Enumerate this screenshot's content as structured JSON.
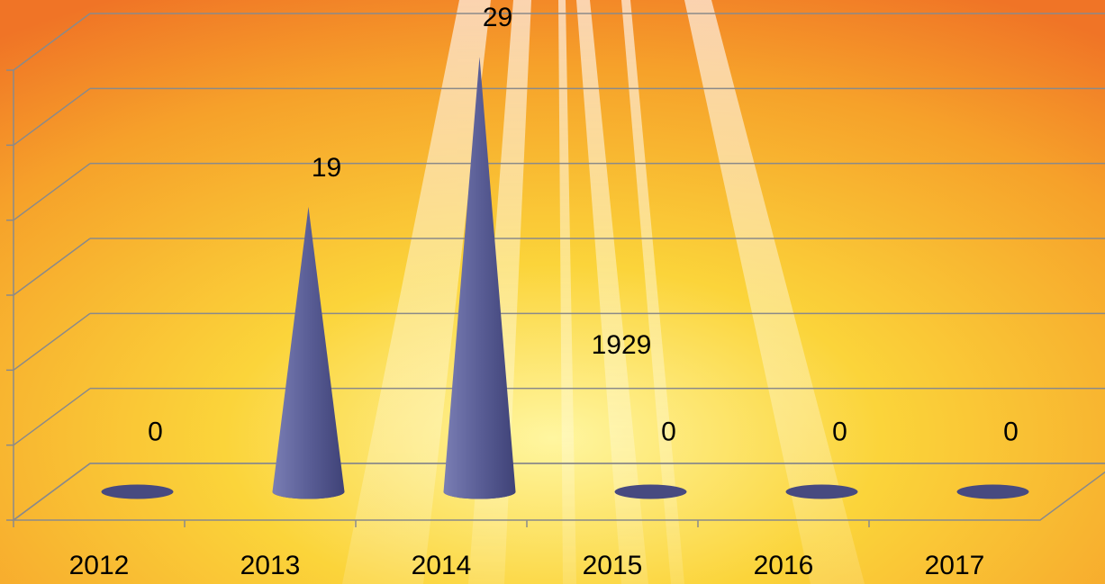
{
  "chart_data": {
    "type": "cone",
    "categories": [
      "2012",
      "2013",
      "2014",
      "2015",
      "2016",
      "2017"
    ],
    "values": [
      0,
      19,
      29,
      0,
      0,
      0
    ],
    "color": "#5a5e96",
    "ylim": [
      0,
      30
    ],
    "yticks": [
      0,
      5,
      10,
      15,
      20,
      25,
      30
    ],
    "grid": true,
    "annotations": [
      "1929"
    ]
  }
}
